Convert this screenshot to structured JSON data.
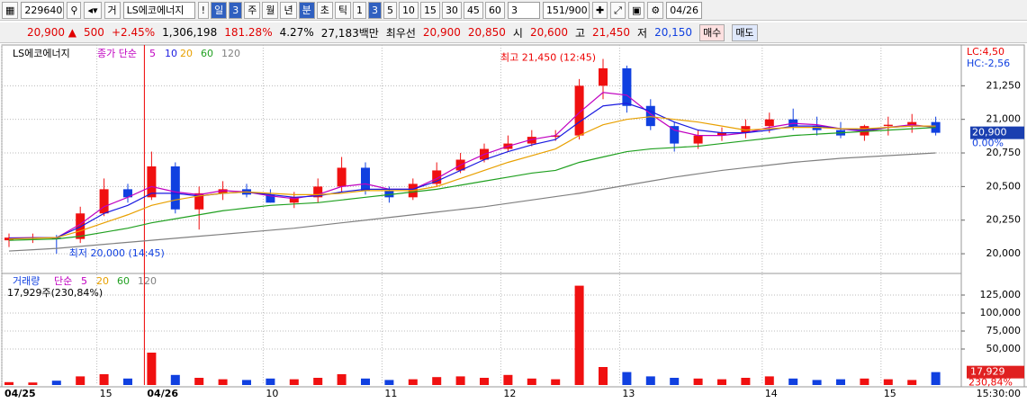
{
  "toolbar": {
    "code": "229640",
    "prefix": "거",
    "name": "LS에코에너지",
    "buttons": [
      "!",
      "일",
      "3",
      "주",
      "월",
      "년",
      "분",
      "초",
      "틱",
      "1",
      "3",
      "5",
      "10",
      "15",
      "30",
      "45",
      "60"
    ],
    "count": "3",
    "range": "151/900",
    "date": "04/26"
  },
  "info": {
    "price": "20,900 ▲",
    "change": "500",
    "change_pct": "+2.45%",
    "volume": "1,306,198",
    "volume_ratio": "181.28%",
    "turnover": "4.27%",
    "amount": "27,183백만",
    "best_label": "최우선",
    "ask": "20,900",
    "bid": "20,850",
    "open_label": "시",
    "open": "20,600",
    "high_label": "고",
    "high": "21,450",
    "low_label": "저",
    "low": "20,150",
    "buy": "매수",
    "sell": "매도"
  },
  "chart_data": [
    {
      "type": "candlestick",
      "title": "LS에코에너지",
      "legend_label": "종가 단순",
      "categories": [
        "04/25",
        null,
        null,
        null,
        "15",
        null,
        "04/26",
        null,
        null,
        null,
        null,
        "10",
        null,
        null,
        null,
        null,
        "11",
        null,
        null,
        null,
        null,
        "12",
        null,
        null,
        null,
        null,
        "13",
        null,
        null,
        null,
        null,
        null,
        "14",
        null,
        null,
        null,
        null,
        "15",
        null,
        null
      ],
      "open": [
        20100,
        20120,
        20120,
        20110,
        20300,
        20480,
        20420,
        20650,
        20330,
        20450,
        20480,
        20440,
        20380,
        20420,
        20500,
        20640,
        20470,
        20420,
        20520,
        20620,
        20700,
        20780,
        20820,
        20870,
        20880,
        21250,
        21380,
        21100,
        20950,
        20820,
        20880,
        20900,
        20950,
        21000,
        20950,
        20920,
        20880,
        20950,
        20960,
        20980
      ],
      "high": [
        20150,
        20150,
        20140,
        20350,
        20560,
        20520,
        20760,
        20680,
        20500,
        20540,
        20520,
        20480,
        20460,
        20560,
        20720,
        20680,
        20500,
        20560,
        20680,
        20750,
        20820,
        20880,
        20920,
        20920,
        21300,
        21450,
        21400,
        21150,
        20980,
        20920,
        20940,
        21000,
        21050,
        21080,
        21020,
        20980,
        20960,
        21020,
        21040,
        21020
      ],
      "low": [
        20050,
        20080,
        20000,
        20080,
        20280,
        20380,
        20400,
        20300,
        20180,
        20400,
        20420,
        20380,
        20340,
        20380,
        20460,
        20440,
        20380,
        20400,
        20500,
        20600,
        20680,
        20760,
        20800,
        20840,
        20850,
        21150,
        21050,
        20920,
        20760,
        20780,
        20840,
        20860,
        20900,
        20920,
        20880,
        20860,
        20840,
        20880,
        20900,
        20880
      ],
      "close": [
        20120,
        20120,
        20110,
        20300,
        20480,
        20420,
        20650,
        20330,
        20450,
        20480,
        20440,
        20380,
        20420,
        20500,
        20640,
        20470,
        20420,
        20520,
        20620,
        20700,
        20780,
        20820,
        20870,
        20880,
        21250,
        21380,
        21100,
        20950,
        20820,
        20880,
        20900,
        20950,
        21000,
        20950,
        20920,
        20880,
        20950,
        20960,
        20980,
        20900
      ],
      "up_color": "#f01010",
      "down_color": "#1040e0",
      "series": [
        {
          "name": "5",
          "color": "#c000c0",
          "values": [
            20118,
            20120,
            20118,
            20220,
            20350,
            20420,
            20500,
            20460,
            20440,
            20470,
            20460,
            20430,
            20410,
            20440,
            20500,
            20520,
            20480,
            20480,
            20560,
            20660,
            20740,
            20800,
            20850,
            20880,
            21050,
            21200,
            21180,
            21040,
            20920,
            20880,
            20880,
            20900,
            20940,
            20970,
            20960,
            20930,
            20910,
            20940,
            20960,
            20940
          ]
        },
        {
          "name": "10",
          "color": "#1a1ae0",
          "values": [
            20115,
            20118,
            20120,
            20200,
            20300,
            20360,
            20450,
            20450,
            20430,
            20450,
            20460,
            20440,
            20420,
            20430,
            20460,
            20480,
            20480,
            20480,
            20540,
            20620,
            20700,
            20760,
            20810,
            20850,
            20980,
            21100,
            21120,
            21060,
            20980,
            20920,
            20900,
            20900,
            20920,
            20950,
            20950,
            20930,
            20920,
            20940,
            20950,
            20950
          ]
        },
        {
          "name": "20",
          "color": "#e8a000",
          "values": [
            20110,
            20115,
            20120,
            20170,
            20230,
            20290,
            20360,
            20400,
            20430,
            20450,
            20460,
            20450,
            20440,
            20440,
            20450,
            20470,
            20470,
            20470,
            20500,
            20560,
            20620,
            20680,
            20730,
            20780,
            20880,
            20960,
            21000,
            21020,
            21000,
            20980,
            20950,
            20920,
            20930,
            20940,
            20940,
            20930,
            20930,
            20940,
            20950,
            20950
          ]
        },
        {
          "name": "60",
          "color": "#20a020",
          "values": [
            20100,
            20105,
            20110,
            20130,
            20160,
            20190,
            20230,
            20260,
            20290,
            20320,
            20340,
            20360,
            20370,
            20380,
            20400,
            20420,
            20440,
            20460,
            20480,
            20510,
            20540,
            20570,
            20600,
            20620,
            20680,
            20720,
            20760,
            20780,
            20790,
            20800,
            20820,
            20840,
            20860,
            20880,
            20890,
            20900,
            20910,
            20920,
            20930,
            20940
          ]
        },
        {
          "name": "120",
          "color": "#808080",
          "values": [
            20020,
            20030,
            20040,
            20055,
            20070,
            20085,
            20100,
            20115,
            20130,
            20145,
            20160,
            20175,
            20190,
            20210,
            20230,
            20250,
            20270,
            20290,
            20310,
            20330,
            20350,
            20375,
            20400,
            20425,
            20450,
            20480,
            20510,
            20540,
            20570,
            20595,
            20620,
            20640,
            20660,
            20680,
            20695,
            20710,
            20720,
            20730,
            20740,
            20750
          ]
        }
      ],
      "ylim": [
        19880,
        21520
      ],
      "yticks": [
        {
          "value": 20000,
          "label": "20,000"
        },
        {
          "value": 20250,
          "label": "20,250"
        },
        {
          "value": 20500,
          "label": "20,500"
        },
        {
          "value": 20750,
          "label": "20,750"
        },
        {
          "value": 21000,
          "label": "21,000"
        },
        {
          "value": 21250,
          "label": "21,250"
        }
      ],
      "grid": true,
      "annotations": {
        "high": "최고 21,450 (12:45)",
        "low": "최저 20,000 (14:45)",
        "lc": "LC:4,50",
        "hc": "HC:-2,56",
        "last": "20,900",
        "last_pct": "0.00%"
      }
    },
    {
      "type": "bar",
      "title": "거래량",
      "legend_label": "단순",
      "legend": [
        {
          "name": "5",
          "color": "#c000c0"
        },
        {
          "name": "20",
          "color": "#e8a000"
        },
        {
          "name": "60",
          "color": "#20a020"
        },
        {
          "name": "120",
          "color": "#808080"
        }
      ],
      "summary": "17,929주(230,84%)",
      "values": [
        4000,
        3500,
        6000,
        12000,
        15000,
        9000,
        45000,
        14000,
        10000,
        8000,
        7000,
        9000,
        8000,
        10000,
        15000,
        9000,
        7000,
        8000,
        11000,
        12000,
        10000,
        14000,
        9000,
        8000,
        138000,
        25000,
        18000,
        12000,
        10000,
        9000,
        8000,
        10000,
        12000,
        9000,
        7000,
        8000,
        9000,
        8000,
        7000,
        17929
      ],
      "ylim": [
        0,
        150000
      ],
      "yticks": [
        {
          "value": 50000,
          "label": "50,000"
        },
        {
          "value": 75000,
          "label": "75,000"
        },
        {
          "value": 100000,
          "label": "100,000"
        },
        {
          "value": 125000,
          "label": "125,000"
        }
      ],
      "last_label": "17,929",
      "last_pct": "230,84%",
      "time_label": "15:30:00"
    }
  ]
}
